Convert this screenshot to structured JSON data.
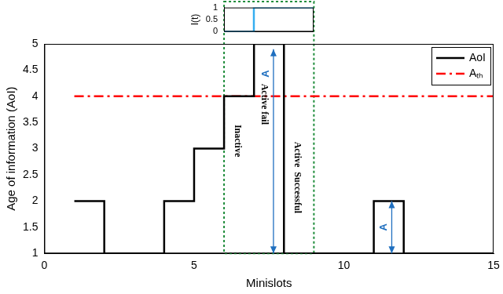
{
  "chart_data": [
    {
      "type": "line",
      "x_label": "Minislots",
      "y_label": "Age of information (AoI)",
      "xlim": [
        0,
        15
      ],
      "ylim": [
        1,
        5
      ],
      "xticks": [
        0,
        5,
        10,
        15
      ],
      "yticks": [
        1,
        1.5,
        2,
        2.5,
        3,
        3.5,
        4,
        4.5,
        5
      ],
      "grid": false,
      "legend": "upper right",
      "series": [
        {
          "name": "AoI",
          "color": "#000000",
          "line_style": "steps",
          "x": [
            1,
            2,
            3,
            4,
            5,
            6,
            7,
            8,
            9,
            10,
            11,
            12,
            13,
            14,
            15
          ],
          "values": [
            2,
            1,
            1,
            2,
            3,
            4,
            5,
            1,
            1,
            1,
            2,
            1,
            1,
            1,
            1
          ]
        },
        {
          "name": "Aₜₕ",
          "color": "#ff0000",
          "line_style": "dashdot",
          "x": [
            1,
            15
          ],
          "values": [
            4,
            4
          ]
        }
      ],
      "region": {
        "xlim": [
          6,
          9
        ],
        "color": "#1e8c3a"
      },
      "annotations": [
        {
          "text": "Inactive",
          "x": 6.45,
          "y": 3.15
        },
        {
          "text": "Active fail",
          "x": 7.35,
          "y": 3.85
        },
        {
          "text": "Active  Successful",
          "x": 8.45,
          "y": 2.45
        }
      ],
      "arrows": [
        {
          "label": "A",
          "x": 7.65,
          "y": [
            1,
            4.9
          ],
          "color": "#1f6fbf"
        },
        {
          "label": "A",
          "x": 11.6,
          "y": [
            1,
            2
          ],
          "color": "#1f6fbf"
        }
      ]
    },
    {
      "type": "line",
      "y_label": "I(t)",
      "xlim": [
        6,
        9
      ],
      "ylim": [
        0,
        1
      ],
      "yticks": [
        0,
        0.5,
        1
      ],
      "tick_labels": "y",
      "grid": false,
      "series": [
        {
          "color": "#35aef0",
          "line_style": "steps",
          "x": [
            6,
            7,
            9
          ],
          "values": [
            0,
            1,
            1
          ]
        }
      ]
    }
  ]
}
